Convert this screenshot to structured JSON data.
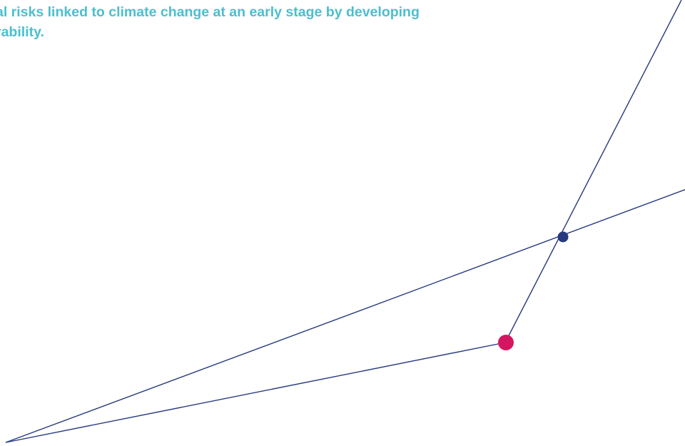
{
  "heading": {
    "line1": "al risks linked to climate change at an early stage by developing",
    "line2": "rability."
  },
  "colors": {
    "heading": "#4bbfcf",
    "line": "#253a7e",
    "junction_dot": "#253a7e",
    "highlight_dot": "#d41560"
  }
}
